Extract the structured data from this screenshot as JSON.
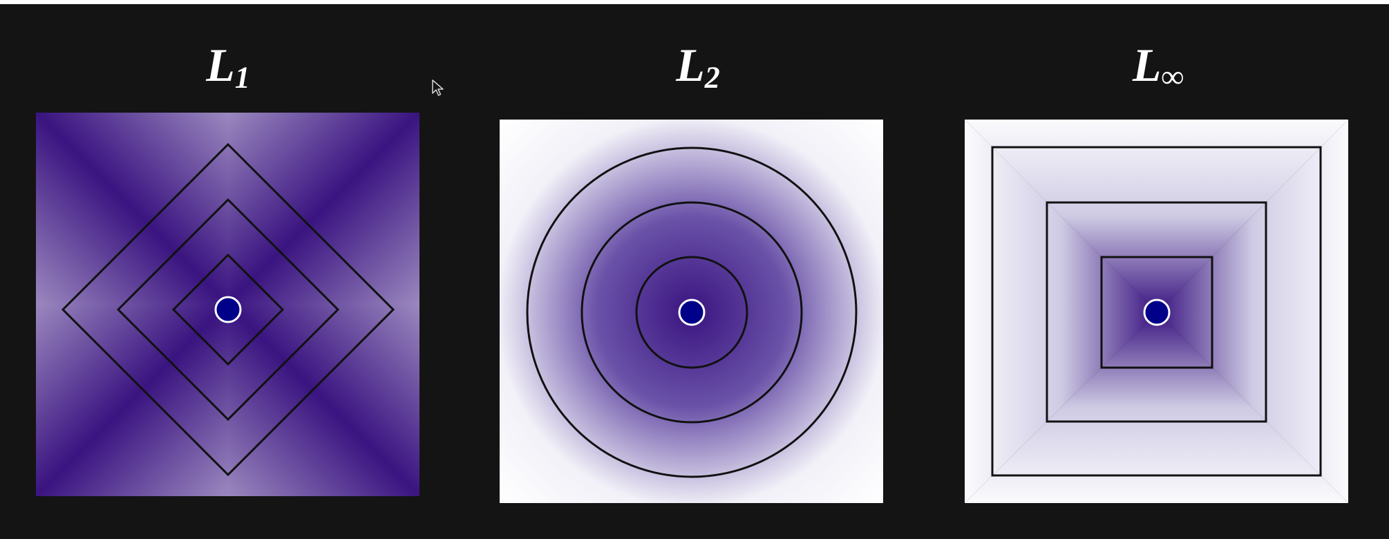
{
  "panels": [
    {
      "id": "l1",
      "title_main": "L",
      "title_sub": "1",
      "metric": "L1",
      "contour_shape": "diamond",
      "contour_levels": [
        1,
        2,
        3
      ]
    },
    {
      "id": "l2",
      "title_main": "L",
      "title_sub": "2",
      "metric": "L2",
      "contour_shape": "circle",
      "contour_levels": [
        1,
        2,
        3
      ]
    },
    {
      "id": "linf",
      "title_main": "L",
      "title_sub": "∞",
      "metric": "Linf",
      "contour_shape": "square",
      "contour_levels": [
        1,
        2,
        3
      ]
    }
  ],
  "colors": {
    "background": "#141414",
    "center": "#3a1480",
    "edge": "#fbfbfd",
    "contour": "#111111",
    "dot_fill": "#000088",
    "dot_stroke": "#ffffff"
  },
  "icons": {
    "cursor": "mouse-pointer-icon"
  }
}
